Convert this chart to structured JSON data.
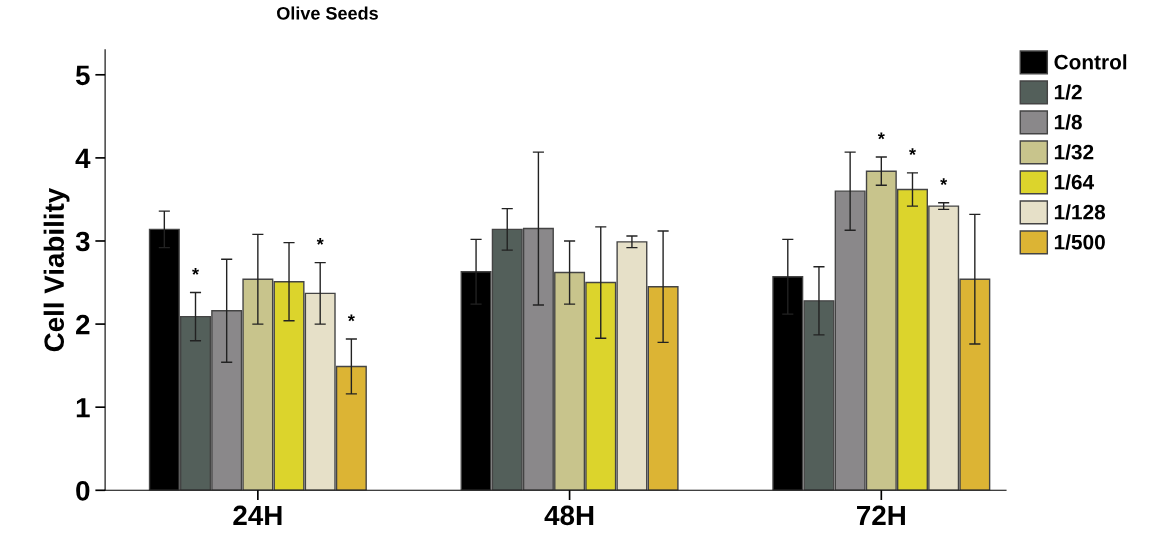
{
  "chart_data": {
    "type": "bar",
    "title": "Olive Seeds",
    "ylabel": "Cell Viability",
    "categories": [
      "24H",
      "48H",
      "72H"
    ],
    "series": [
      {
        "name": "Control",
        "color": "#000000",
        "values": [
          3.14,
          2.63,
          2.57
        ],
        "errors": [
          0.22,
          0.39,
          0.45
        ]
      },
      {
        "name": "1/2",
        "color": "#535f5a",
        "values": [
          2.09,
          3.14,
          2.28
        ],
        "errors": [
          0.29,
          0.25,
          0.41
        ],
        "value_labels": [
          "*",
          null,
          null
        ]
      },
      {
        "name": "1/8",
        "color": "#8a888a",
        "values": [
          2.16,
          3.15,
          3.6
        ],
        "errors": [
          0.62,
          0.92,
          0.47
        ]
      },
      {
        "name": "1/32",
        "color": "#c8c48c",
        "values": [
          2.54,
          2.62,
          3.84
        ],
        "errors": [
          0.54,
          0.38,
          0.17
        ],
        "value_labels": [
          null,
          null,
          "*"
        ]
      },
      {
        "name": "1/64",
        "color": "#dcd42c",
        "values": [
          2.51,
          2.5,
          3.62
        ],
        "errors": [
          0.47,
          0.67,
          0.2
        ],
        "value_labels": [
          null,
          null,
          "*"
        ]
      },
      {
        "name": "1/128",
        "color": "#e6e0c8",
        "values": [
          2.37,
          2.99,
          3.42
        ],
        "errors": [
          0.37,
          0.07,
          0.04
        ],
        "value_labels": [
          "*",
          null,
          "*"
        ]
      },
      {
        "name": "1/500",
        "color": "#dcb434",
        "values": [
          1.49,
          2.45,
          2.54
        ],
        "errors": [
          0.33,
          0.67,
          0.78
        ],
        "value_labels": [
          "*",
          null,
          null
        ]
      }
    ],
    "ylim": [
      0,
      5.3
    ],
    "yticks": [
      0,
      1,
      2,
      3,
      4,
      5
    ],
    "grid": false,
    "legend": "top right"
  }
}
